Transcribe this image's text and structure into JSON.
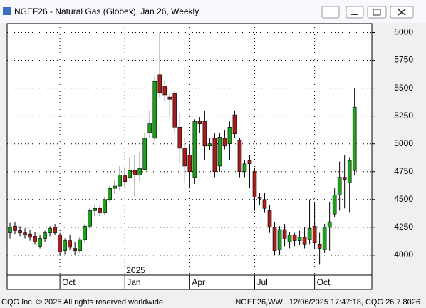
{
  "chart_data": {
    "type": "candlestick",
    "title": "NGEF26 - Natural Gas (Globex), Jan 26, Weekly",
    "categories": [
      null,
      null,
      null,
      null,
      null,
      null,
      null,
      null,
      null,
      null,
      "Oct",
      null,
      null,
      null,
      null,
      null,
      null,
      null,
      null,
      null,
      null,
      null,
      null,
      "Jan",
      null,
      null,
      null,
      null,
      null,
      null,
      null,
      null,
      null,
      null,
      null,
      null,
      "Apr",
      null,
      null,
      null,
      null,
      null,
      null,
      null,
      null,
      null,
      null,
      null,
      null,
      "Jul",
      null,
      null,
      null,
      null,
      null,
      null,
      null,
      null,
      null,
      null,
      null,
      "Oct",
      null,
      null,
      null,
      null,
      null,
      null,
      null,
      null
    ],
    "year_label": "2025",
    "open": [
      4200,
      4260,
      4220,
      4200,
      4190,
      4170,
      4080,
      4150,
      4200,
      4250,
      4180,
      4040,
      4130,
      4060,
      4040,
      4140,
      4260,
      4400,
      4420,
      4380,
      4500,
      4600,
      4620,
      4720,
      4700,
      4760,
      4720,
      4770,
      5100,
      5050,
      5620,
      5520,
      5420,
      5450,
      5150,
      4960,
      4900,
      4700,
      5200,
      5200,
      4980,
      5050,
      4800,
      5050,
      5000,
      5260,
      5030,
      4750,
      4850,
      4750,
      4520,
      4500,
      4400,
      4250,
      4050,
      4230,
      4120,
      4180,
      4130,
      4160,
      4140,
      4260,
      4100,
      4050,
      4250,
      4370,
      4540,
      4700,
      4650,
      4760
    ],
    "high": [
      4290,
      4300,
      4260,
      4240,
      4230,
      4210,
      4180,
      4220,
      4260,
      4280,
      4200,
      4150,
      4180,
      4120,
      4160,
      4280,
      4420,
      4450,
      4440,
      4520,
      4620,
      4680,
      4800,
      4780,
      4880,
      4900,
      4930,
      5100,
      5300,
      5600,
      6000,
      5560,
      5460,
      5480,
      5280,
      5050,
      5000,
      5220,
      5240,
      5300,
      5050,
      5100,
      5100,
      5120,
      5200,
      5300,
      5050,
      4850,
      4900,
      4780,
      4560,
      4560,
      4450,
      4300,
      4260,
      4280,
      4210,
      4200,
      4220,
      4250,
      4500,
      4480,
      4200,
      4280,
      4480,
      4600,
      4840,
      4900,
      4880,
      5500
    ],
    "low": [
      4150,
      4190,
      4170,
      4150,
      4130,
      4100,
      4060,
      4120,
      4170,
      4180,
      4000,
      4010,
      4050,
      4000,
      4020,
      4120,
      4240,
      4350,
      4350,
      4360,
      4480,
      4550,
      4580,
      4600,
      4680,
      4520,
      4660,
      4760,
      5050,
      5020,
      5420,
      5380,
      5250,
      5100,
      4830,
      4650,
      4600,
      4640,
      5100,
      4850,
      4940,
      4700,
      4750,
      4950,
      4850,
      5050,
      4700,
      4700,
      4600,
      4400,
      4450,
      4380,
      4200,
      4000,
      4000,
      4080,
      4060,
      4080,
      4090,
      4060,
      4100,
      4060,
      3920,
      4020,
      4040,
      4340,
      4400,
      4420,
      4380,
      4720
    ],
    "close": [
      4250,
      4220,
      4200,
      4180,
      4160,
      4120,
      4150,
      4200,
      4240,
      4200,
      4030,
      4130,
      4070,
      4040,
      4140,
      4260,
      4400,
      4420,
      4380,
      4500,
      4600,
      4620,
      4720,
      4660,
      4760,
      4720,
      4780,
      5050,
      5180,
      5560,
      5460,
      5440,
      5400,
      5150,
      4960,
      4800,
      4750,
      5200,
      5180,
      4980,
      5000,
      4750,
      5060,
      4980,
      5150,
      5090,
      4750,
      4820,
      4820,
      4520,
      4510,
      4420,
      4250,
      4040,
      4230,
      4150,
      4180,
      4130,
      4160,
      4100,
      4240,
      4110,
      4060,
      4250,
      4300,
      4540,
      4700,
      4680,
      4850,
      5330
    ],
    "up_color": "#1ca01c",
    "down_color": "#a81c1c",
    "ylim": [
      3820,
      6080
    ],
    "yticks": [
      4000,
      4250,
      4500,
      4750,
      5000,
      5250,
      5500,
      5750,
      6000
    ],
    "grid": true
  },
  "footer": {
    "left": "CQG Inc. © 2025 All rights reserved worldwide",
    "right": "NGEF26,WW | 12/06/2025 17:47:18, CQG 26.7.8026"
  }
}
